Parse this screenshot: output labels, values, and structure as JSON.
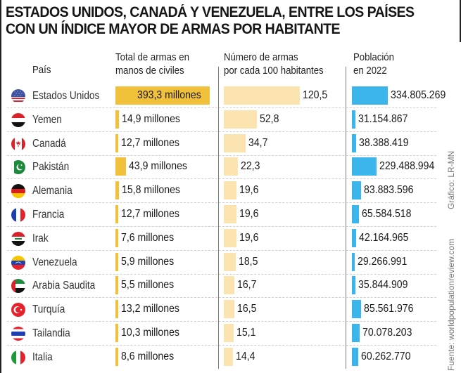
{
  "title_line1": "ESTADOS UNIDOS, CANADÁ Y VENEZUELA, ENTRE LOS PAÍSES",
  "title_line2": "CON UN ÍNDICE MAYOR DE ARMAS POR HABITANTE",
  "headers": {
    "country": "País",
    "total_line1": "Total de armas en",
    "total_line2": "manos de civiles",
    "per100_line1": "Número de armas",
    "per100_line2": "por cada 100 habitantes",
    "pop_line1": "Población",
    "pop_line2": "en 2022"
  },
  "credit": "Gráfico: LR-MN",
  "source": "Fuente: worldpopulationreview.com",
  "colors": {
    "total_bar": "#f2c13b",
    "per100_bar": "#fce4b0",
    "population_bar": "#3bb5ec"
  },
  "chart_data": {
    "type": "table",
    "title": "ESTADOS UNIDOS, CANADÁ Y VENEZUELA, ENTRE LOS PAÍSES CON UN ÍNDICE MAYOR DE ARMAS POR HABITANTE",
    "columns": [
      "País",
      "Total de armas en manos de civiles",
      "Número de armas por cada 100 habitantes",
      "Población en 2022"
    ],
    "rows": [
      {
        "country": "Estados Unidos",
        "flag": "us-flag",
        "total_label": "393,3 millones",
        "total": 393.3,
        "per100_label": "120,5",
        "per100": 120.5,
        "pop_label": "334.805.269",
        "pop": 334805269
      },
      {
        "country": "Yemen",
        "flag": "yemen-flag",
        "total_label": "14,9 millones",
        "total": 14.9,
        "per100_label": "52,8",
        "per100": 52.8,
        "pop_label": "31.154.867",
        "pop": 31154867
      },
      {
        "country": "Canadá",
        "flag": "canada-flag",
        "total_label": "12,7 millones",
        "total": 12.7,
        "per100_label": "34,7",
        "per100": 34.7,
        "pop_label": "38.388.419",
        "pop": 38388419
      },
      {
        "country": "Pakistán",
        "flag": "pakistan-flag",
        "total_label": "43,9 millones",
        "total": 43.9,
        "per100_label": "22,3",
        "per100": 22.3,
        "pop_label": "229.488.994",
        "pop": 229488994
      },
      {
        "country": "Alemania",
        "flag": "germany-flag",
        "total_label": "15,8 millones",
        "total": 15.8,
        "per100_label": "19,6",
        "per100": 19.6,
        "pop_label": "83.883.596",
        "pop": 83883596
      },
      {
        "country": "Francia",
        "flag": "france-flag",
        "total_label": "12,7 millones",
        "total": 12.7,
        "per100_label": "19,6",
        "per100": 19.6,
        "pop_label": "65.584.518",
        "pop": 65584518
      },
      {
        "country": "Irak",
        "flag": "iraq-flag",
        "total_label": "7,6 millones",
        "total": 7.6,
        "per100_label": "19,6",
        "per100": 19.6,
        "pop_label": "42.164.965",
        "pop": 42164965
      },
      {
        "country": "Venezuela",
        "flag": "venezuela-flag",
        "total_label": "5,9 millones",
        "total": 5.9,
        "per100_label": "18,5",
        "per100": 18.5,
        "pop_label": "29.266.991",
        "pop": 29266991
      },
      {
        "country": "Arabia Saudita",
        "flag": "uae-style-flag",
        "total_label": "5,5 millones",
        "total": 5.5,
        "per100_label": "16,7",
        "per100": 16.7,
        "pop_label": "35.844.909",
        "pop": 35844909
      },
      {
        "country": "Turquía",
        "flag": "turkey-flag",
        "total_label": "13,2 millones",
        "total": 13.2,
        "per100_label": "16,5",
        "per100": 16.5,
        "pop_label": "85.561.976",
        "pop": 85561976
      },
      {
        "country": "Tailandia",
        "flag": "thailand-flag",
        "total_label": "10,3 millones",
        "total": 10.3,
        "per100_label": "15,1",
        "per100": 15.1,
        "pop_label": "70.078.203",
        "pop": 70078203
      },
      {
        "country": "Italia",
        "flag": "italy-flag",
        "total_label": "8,6 millones",
        "total": 8.6,
        "per100_label": "14,4",
        "per100": 14.4,
        "pop_label": "60.262.770",
        "pop": 60262770
      }
    ]
  }
}
